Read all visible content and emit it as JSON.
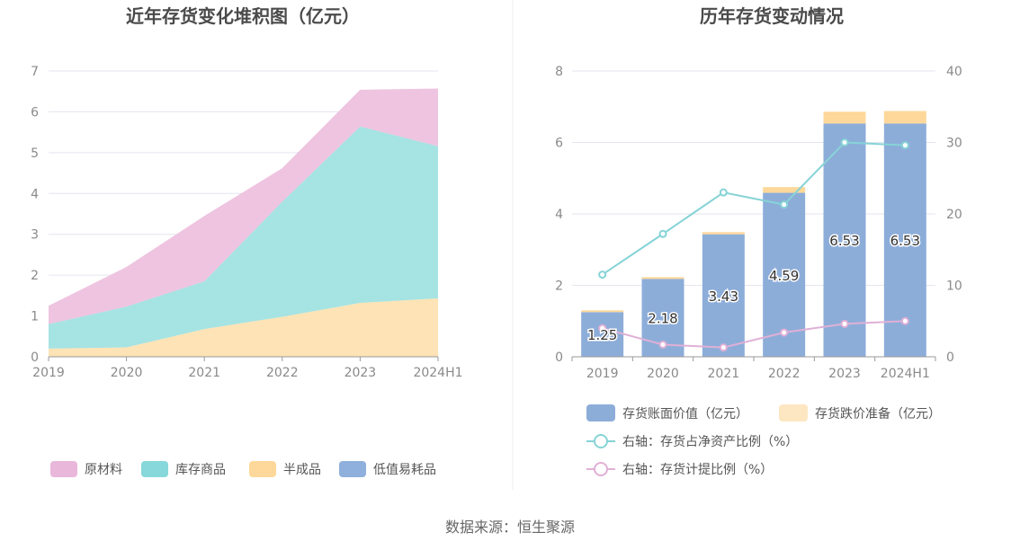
{
  "colors": {
    "raw": "#eec4e0",
    "goods": "#a6e3e3",
    "semi": "#fde3b5",
    "low": "#8fb0dc",
    "legend_raw": "#e8b7d9",
    "legend_goods": "#86d8db",
    "legend_semi": "#fdd89a",
    "legend_low": "#8fb0dc",
    "book_bar": "#8dadd9",
    "reserve_bar": "#fdd89a",
    "reserve_legend": "#fde7c2",
    "line_net": "#86d3d6",
    "line_provision": "#e0b0d6",
    "grid": "#e3e6ef",
    "axis": "#9a9a9a"
  },
  "chart_data": [
    {
      "type": "area",
      "title": "近年存货变化堆积图（亿元）",
      "categories": [
        "2019",
        "2020",
        "2021",
        "2022",
        "2023",
        "2024H1"
      ],
      "ylim": [
        0,
        7
      ],
      "yticks": [
        "0",
        "1",
        "2",
        "3",
        "4",
        "5",
        "6",
        "7"
      ],
      "stacked": true,
      "series": [
        {
          "name": "低值易耗品",
          "values": [
            0,
            0,
            0,
            0,
            0,
            0
          ]
        },
        {
          "name": "半成品",
          "values": [
            0.2,
            0.23,
            0.68,
            0.98,
            1.32,
            1.43
          ]
        },
        {
          "name": "库存商品",
          "values": [
            0.6,
            1.0,
            1.17,
            2.82,
            4.32,
            3.73
          ]
        },
        {
          "name": "原材料",
          "values": [
            0.45,
            0.97,
            1.6,
            0.82,
            0.9,
            1.41
          ]
        }
      ],
      "legend": "bottom",
      "grid": true
    },
    {
      "type": "bar",
      "title": "历年存货变动情况",
      "categories": [
        "2019",
        "2020",
        "2021",
        "2022",
        "2023",
        "2024H1"
      ],
      "ylim": [
        0,
        8
      ],
      "yticks": [
        "0",
        "2",
        "4",
        "6",
        "8"
      ],
      "y2lim": [
        0,
        40
      ],
      "y2ticks": [
        "0",
        "10",
        "20",
        "30",
        "40"
      ],
      "stacked": true,
      "series": [
        {
          "name": "存货账面价值（亿元）",
          "kind": "bar",
          "axis": "left",
          "values": [
            1.25,
            2.18,
            3.43,
            4.59,
            6.53,
            6.53
          ],
          "labels": [
            "1.25",
            "2.18",
            "3.43",
            "4.59",
            "6.53",
            "6.53"
          ]
        },
        {
          "name": "存货跌价准备（亿元）",
          "kind": "bar",
          "axis": "left",
          "values": [
            0.05,
            0.05,
            0.06,
            0.16,
            0.33,
            0.35
          ]
        },
        {
          "name": "右轴：存货占净资产比例（%）",
          "kind": "line",
          "axis": "right",
          "values": [
            11.5,
            17.2,
            23.0,
            21.3,
            30.0,
            29.6
          ]
        },
        {
          "name": "右轴：存货计提比例（%）",
          "kind": "line",
          "axis": "right",
          "values": [
            4.0,
            1.7,
            1.3,
            3.4,
            4.6,
            5.0
          ]
        }
      ],
      "legend": "bottom",
      "grid": true
    }
  ],
  "footer": {
    "source": "数据来源：恒生聚源"
  }
}
